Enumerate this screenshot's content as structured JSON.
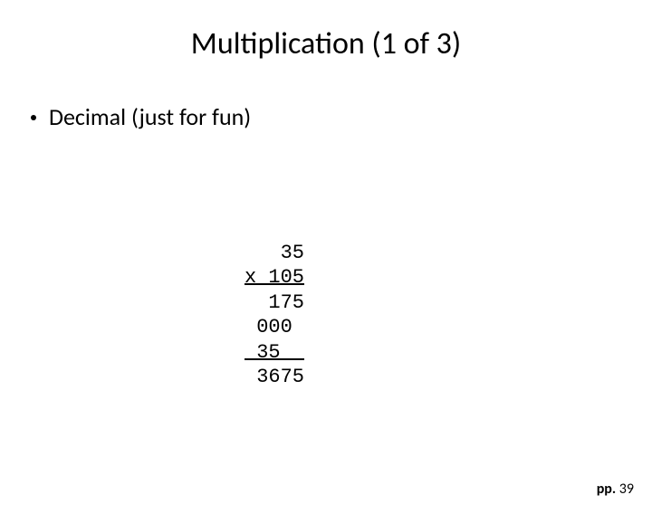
{
  "title": "Multiplication (1 of 3)",
  "bullet": "Decimal (just for fun)",
  "math": {
    "line1": "   35",
    "line2": "x 105",
    "line3": "  175",
    "line4": " 000",
    "line5": " 35  ",
    "line6": " 3675"
  },
  "footer": {
    "label": "pp.",
    "page": "39"
  },
  "style": {
    "background": "#ffffff",
    "text_color": "#000000",
    "title_fontsize": 34,
    "bullet_fontsize": 26,
    "mono_fontsize": 22,
    "footer_fontsize": 16
  }
}
